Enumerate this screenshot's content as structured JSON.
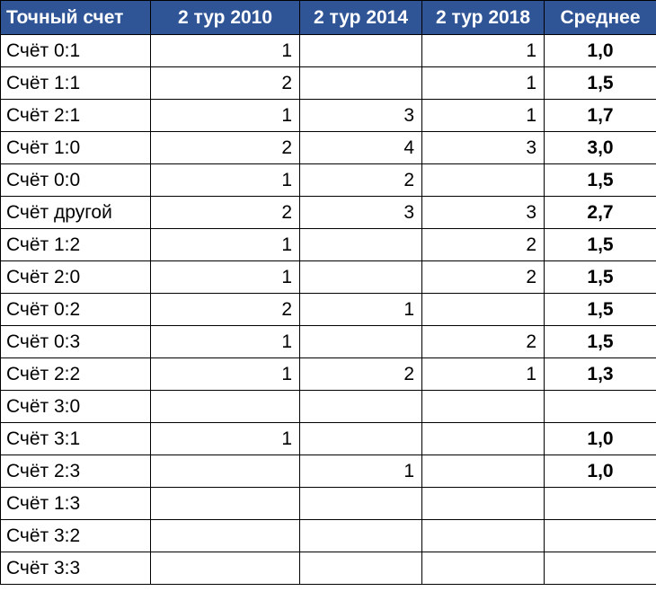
{
  "table": {
    "header": [
      "Точный счет",
      "2 тур 2010",
      "2 тур 2014",
      "2 тур 2018",
      "Среднее"
    ],
    "rows": [
      [
        "Счёт 0:1",
        "1",
        null,
        "1",
        "1,0"
      ],
      [
        "Счёт 1:1",
        "2",
        null,
        "1",
        "1,5"
      ],
      [
        "Счёт 2:1",
        "1",
        "3",
        "1",
        "1,7"
      ],
      [
        "Счёт 1:0",
        "2",
        "4",
        "3",
        "3,0"
      ],
      [
        "Счёт 0:0",
        "1",
        "2",
        null,
        "1,5"
      ],
      [
        "Счёт другой",
        "2",
        "3",
        "3",
        "2,7"
      ],
      [
        "Счёт 1:2",
        "1",
        null,
        "2",
        "1,5"
      ],
      [
        "Счёт 2:0",
        "1",
        null,
        "2",
        "1,5"
      ],
      [
        "Счёт 0:2",
        "2",
        "1",
        null,
        "1,5"
      ],
      [
        "Счёт 0:3",
        "1",
        null,
        "2",
        "1,5"
      ],
      [
        "Счёт 2:2",
        "1",
        "2",
        "1",
        "1,3"
      ],
      [
        "Счёт 3:0",
        null,
        null,
        null,
        null
      ],
      [
        "Счёт 3:1",
        "1",
        null,
        null,
        "1,0"
      ],
      [
        "Счёт 2:3",
        null,
        "1",
        null,
        "1,0"
      ],
      [
        "Счёт 1:3",
        null,
        null,
        null,
        null
      ],
      [
        "Счёт 3:2",
        null,
        null,
        null,
        null
      ],
      [
        "Счёт 3:3",
        null,
        null,
        null,
        null
      ]
    ]
  }
}
